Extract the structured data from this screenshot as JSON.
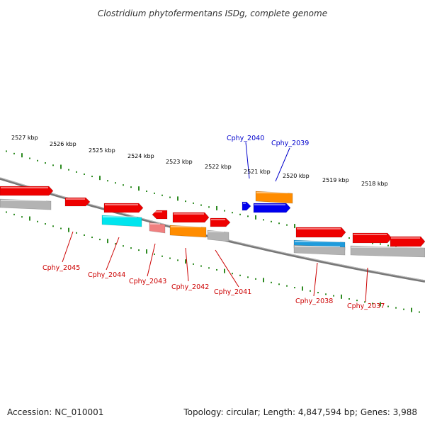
{
  "title": "Clostridium phytofermentans ISDg, complete genome",
  "footer": {
    "accession": "Accession: NC_010001",
    "summary": "Topology: circular; Length: 4,847,594 bp; Genes: 3,988"
  },
  "scale_labels": [
    "2527 kbp",
    "2526 kbp",
    "2525 kbp",
    "2524 kbp",
    "2523 kbp",
    "2522 kbp",
    "2521 kbp",
    "2520 kbp",
    "2519 kbp",
    "2518 kbp"
  ],
  "gene_labels_top": [
    "Cphy_2040",
    "Cphy_2039"
  ],
  "gene_labels_bottom": [
    "Cphy_2045",
    "Cphy_2044",
    "Cphy_2043",
    "Cphy_2042",
    "Cphy_2041",
    "Cphy_2038",
    "Cphy_2037"
  ],
  "colors": {
    "top_label": "#0000cc",
    "bottom_label": "#cc0000",
    "backbone": "#888888",
    "scale_tick": "#2e8b22",
    "gene_red": "#ee0000",
    "gene_orange": "#ff8c00",
    "gene_blue": "#0000ee",
    "gene_cyan": "#00e5ee",
    "gene_pink": "#f08080",
    "gene_gray": "#b3b3b3",
    "gene_skyblue": "#1e9bdc"
  }
}
